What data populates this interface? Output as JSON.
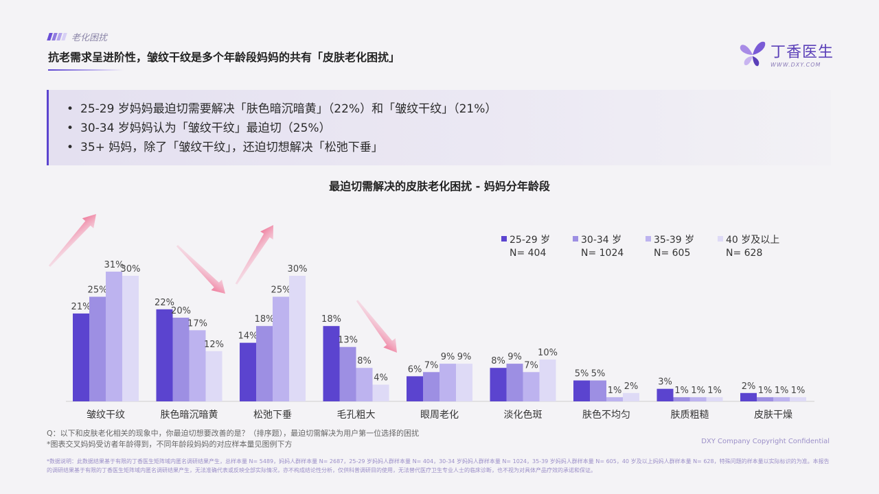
{
  "section": {
    "tag": "老化困扰"
  },
  "headline": "抗老需求呈进阶性，皱纹干纹是多个年龄段妈妈的共有「皮肤老化困扰」",
  "logo": {
    "name": "丁香医生",
    "url": "WWW.DXY.COM"
  },
  "summary": {
    "bullets": [
      "25-29 岁妈妈最迫切需要解决「肤色暗沉暗黄」（22%）和「皱纹干纹」（21%）",
      "30-34 岁妈妈认为「皱纹干纹」最迫切（25%）",
      "35+ 妈妈，除了「皱纹干纹」，还迫切想解决「松弛下垂」"
    ]
  },
  "chart_data": {
    "type": "bar",
    "title": "最迫切需解决的皮肤老化困扰 - 妈妈分年龄段",
    "categories": [
      "皱纹干纹",
      "肤色暗沉暗黄",
      "松弛下垂",
      "毛孔粗大",
      "眼周老化",
      "淡化色斑",
      "肤色不均匀",
      "肤质粗糙",
      "皮肤干燥"
    ],
    "series": [
      {
        "name": "25-29 岁",
        "n": "N= 404",
        "color": "#5b44cf",
        "values": [
          21,
          22,
          14,
          18,
          6,
          8,
          5,
          3,
          2
        ]
      },
      {
        "name": "30-34 岁",
        "n": "N= 1024",
        "color": "#9d8fe3",
        "values": [
          25,
          20,
          18,
          13,
          7,
          9,
          5,
          1,
          1
        ]
      },
      {
        "name": "35-39 岁",
        "n": "N= 605",
        "color": "#bdb3ef",
        "values": [
          31,
          17,
          25,
          8,
          9,
          7,
          1,
          1,
          1
        ]
      },
      {
        "name": "40 岁及以上",
        "n": "N= 628",
        "color": "#dedaf6",
        "values": [
          30,
          12,
          30,
          4,
          9,
          10,
          2,
          1,
          1
        ]
      }
    ],
    "unit": "%",
    "ylim": [
      0,
      33
    ],
    "legend": "top-right",
    "grid": false
  },
  "notes": [
    "Q：以下和皮肤老化相关的现象中，你最迫切想要改善的是？（排序题），最迫切需解决为用户第一位选择的困扰",
    "*图表交叉妈妈受访者年龄得到，不同年龄段妈妈的对应样本量见图例下方"
  ],
  "copyright": "DXY Company Copyright Confidential",
  "disclaimer": "*数据说明：此数据结果基于有限的丁香医生矩阵域内匿名调研结果产生，总样本量 N= 5489，妈妈人群样本量 N= 2687，25-29 岁妈妈人群样本量 N= 404，30-34 岁妈妈人群样本量 N= 1024，35-39 岁妈妈人群样本量 N= 605，40 岁及以上妈妈人群样本量 N= 628，特殊问题的样本量以实际标识的为准。本报告的调研结果基于有限的丁香医生矩阵域内匿名调研结果产生，无法准确代表或反映全部实际情况，亦不构成结论性分析，仅供科普调研目的使用，无法替代医疗卫生专业人士的临床诊断，也不视为对具体产品疗效的承诺和保证。"
}
